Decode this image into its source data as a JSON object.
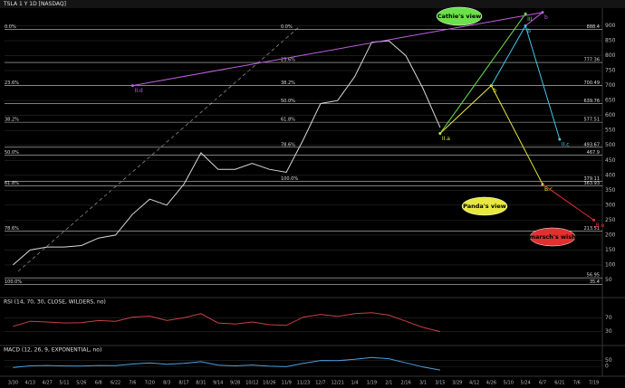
{
  "chart_data": [
    {
      "type": "line",
      "title": "TSLA 1 Y 1D [NASDAQ]",
      "categories": [
        "3/30",
        "4/13",
        "4/27",
        "5/11",
        "5/26",
        "6/8",
        "6/22",
        "7/6",
        "7/20",
        "8/3",
        "8/17",
        "8/31",
        "9/14",
        "9/28",
        "10/12",
        "10/26",
        "11/9",
        "11/23",
        "12/7",
        "12/21",
        "1/4",
        "1/19",
        "2/1",
        "2/16",
        "3/1",
        "3/15",
        "3/29",
        "4/12",
        "4/26",
        "5/10",
        "5/24",
        "6/7",
        "6/21",
        "7/6",
        "7/19"
      ],
      "values": [
        100,
        150,
        160,
        160,
        165,
        190,
        200,
        270,
        320,
        300,
        370,
        475,
        420,
        420,
        440,
        420,
        410,
        520,
        640,
        650,
        730,
        845,
        850,
        800,
        690,
        560,
        null,
        null,
        null,
        null,
        null,
        null,
        null,
        null,
        null
      ],
      "color": "#d8d8d8",
      "ylim": [
        0,
        950
      ],
      "yticks": [
        50,
        100,
        150,
        200,
        250,
        300,
        350,
        400,
        450,
        500,
        550,
        600,
        650,
        700,
        750,
        800,
        850,
        900
      ],
      "levels": [
        888.4,
        777.36,
        700.49,
        639.76,
        577.51,
        493.67,
        467.9,
        379.11,
        363.93,
        213.51,
        56.95,
        35.4
      ],
      "fib_sets": [
        [
          {
            "value": 888.4,
            "label": "0.0%"
          },
          {
            "value": 700.49,
            "label": "23.6%"
          },
          {
            "value": 577.51,
            "label": "38.2%"
          },
          {
            "value": 467.9,
            "label": "50.0%"
          },
          {
            "value": 363.93,
            "label": "61.8%"
          },
          {
            "value": 213.51,
            "label": "78.6%"
          },
          {
            "value": 35.4,
            "label": "100.0%"
          }
        ],
        [
          {
            "value": 888.4,
            "label": "0.0%"
          },
          {
            "value": 777.36,
            "label": "23.6%"
          },
          {
            "value": 700.49,
            "label": "38.2%"
          },
          {
            "value": 639.76,
            "label": "50.0%"
          },
          {
            "value": 577.51,
            "label": "61.8%"
          },
          {
            "value": 493.67,
            "label": "78.6%"
          },
          {
            "value": 379.11,
            "label": "100.0%"
          }
        ]
      ],
      "projections": [
        {
          "name": "Panda's view",
          "color": "#e8e840",
          "x": [
            "3/15",
            "4/26",
            "6/7"
          ],
          "values": [
            540,
            700,
            370
          ],
          "labels": [
            "II.a",
            "b",
            "B.c"
          ]
        },
        {
          "name": "Cathie's view",
          "color": "#6be04a",
          "x": [
            "3/15",
            "5/24"
          ],
          "values": [
            540,
            940
          ],
          "labels": [
            null,
            "III"
          ]
        },
        {
          "color": "#40c8e8",
          "x": [
            "4/26",
            "5/24",
            "6/21"
          ],
          "values": [
            700,
            900,
            520
          ],
          "labels": [
            null,
            "b",
            "II.c"
          ]
        },
        {
          "color": "#c060e0",
          "x": [
            "5/24",
            "6/7",
            "7/6"
          ],
          "values": [
            900,
            945,
            700
          ],
          "labels": [
            null,
            "b",
            "II.d"
          ]
        },
        {
          "name": "marsch's wish",
          "color": "#e03030",
          "x": [
            "6/7",
            "7/19"
          ],
          "values": [
            370,
            250
          ],
          "labels": [
            null,
            "B.e"
          ]
        }
      ]
    },
    {
      "type": "line",
      "title": "RSI (14, 70, 30, CLOSE, WILDERS, no)",
      "values": [
        45,
        60,
        58,
        55,
        56,
        62,
        60,
        72,
        75,
        62,
        70,
        82,
        55,
        52,
        58,
        50,
        48,
        72,
        80,
        74,
        82,
        85,
        78,
        60,
        42,
        30,
        null,
        null,
        null,
        null,
        null,
        null,
        null,
        null,
        null
      ],
      "color": "#c84040",
      "ylim": [
        0,
        100
      ],
      "yticks": [
        30,
        70
      ]
    },
    {
      "type": "line",
      "title": "MACD (12, 26, 9, EXPONENTIAL, no)",
      "values": [
        -10,
        5,
        8,
        4,
        3,
        8,
        6,
        20,
        30,
        18,
        25,
        40,
        10,
        5,
        12,
        2,
        -2,
        25,
        50,
        48,
        60,
        75,
        65,
        30,
        -5,
        -30,
        null,
        null,
        null,
        null,
        null,
        null,
        null,
        null,
        null
      ],
      "color": "#4aa0e0",
      "ylim": [
        -60,
        100
      ],
      "yticks": [
        0,
        50
      ]
    }
  ]
}
